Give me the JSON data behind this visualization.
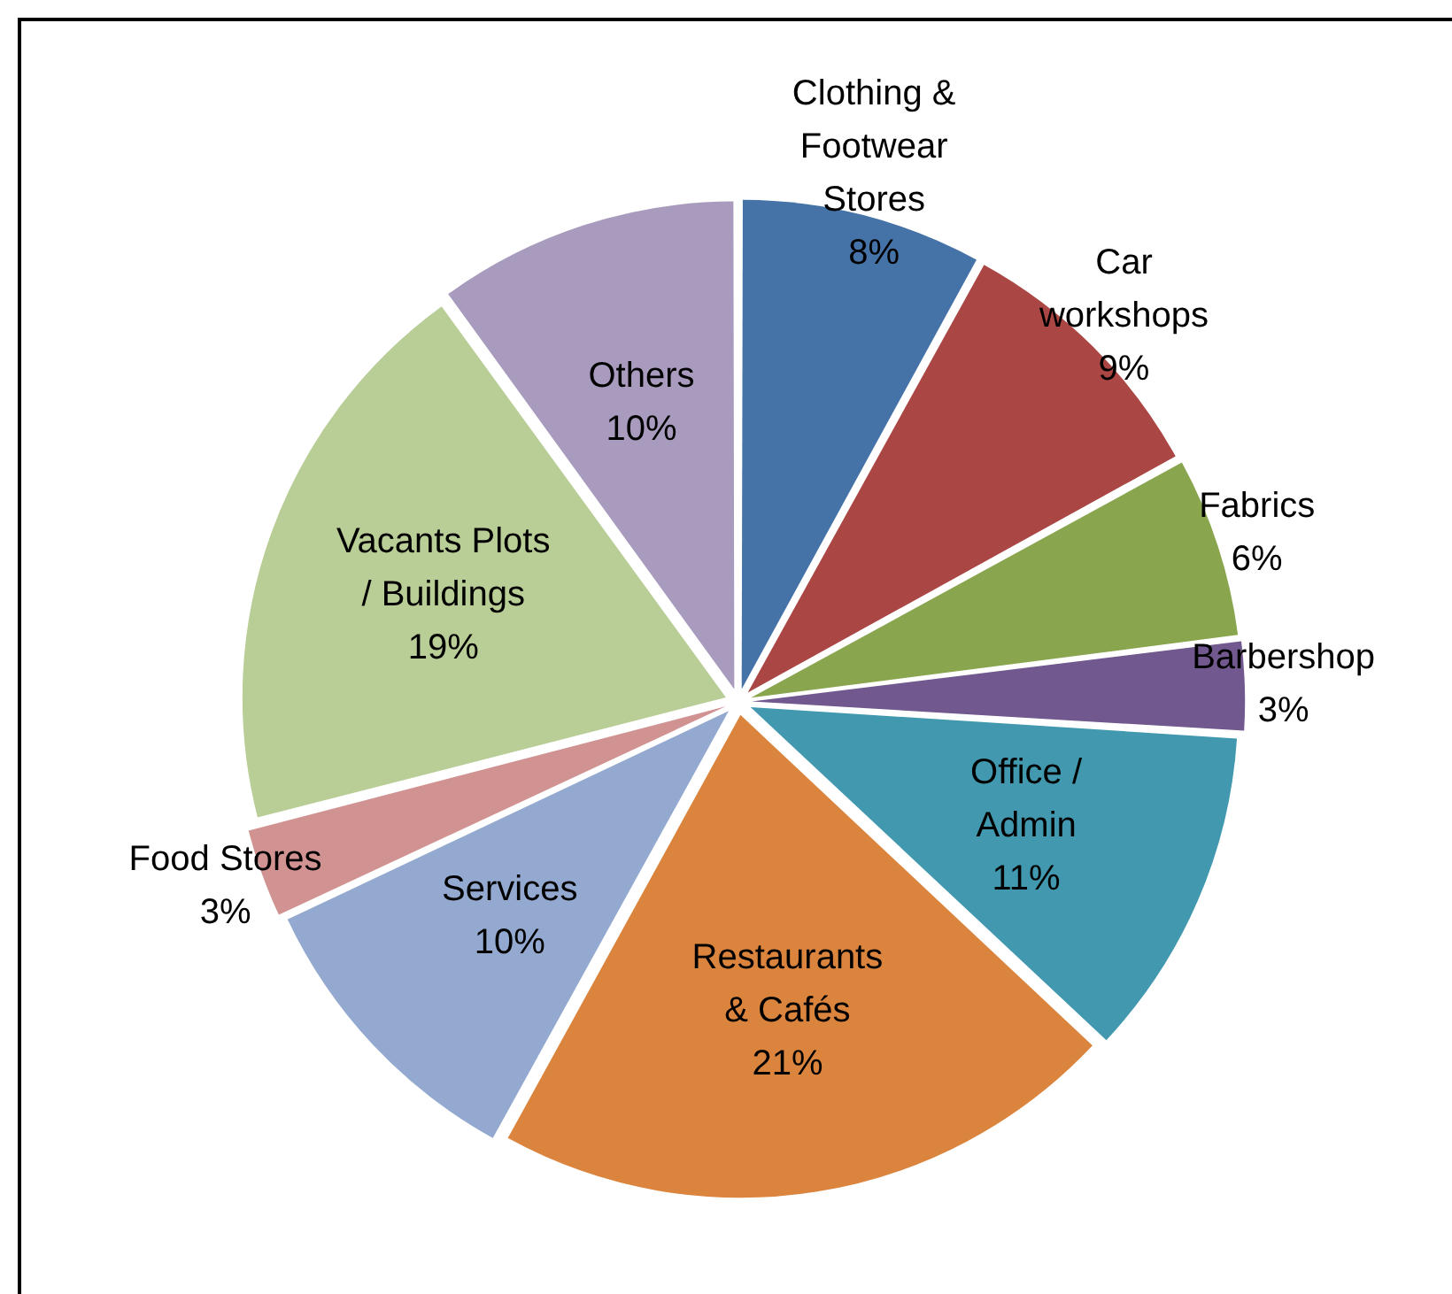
{
  "chart_data": {
    "type": "pie",
    "categories": [
      "Clothing & Footwear Stores",
      "Car workshops",
      "Fabrics",
      "Barbershop",
      "Office / Admin",
      "Restaurants & Cafés",
      "Services",
      "Food Stores",
      "Vacants Plots / Buildings",
      "Others"
    ],
    "values": [
      8,
      9,
      6,
      3,
      11,
      21,
      10,
      3,
      19,
      10
    ],
    "colors": [
      "#4572a7",
      "#aa4643",
      "#89a54e",
      "#71588f",
      "#4198af",
      "#db843d",
      "#93a9cf",
      "#d19392",
      "#b9cd96",
      "#a99bbd"
    ],
    "value_labels": [
      "8%",
      "9%",
      "6%",
      "3%",
      "11%",
      "21%",
      "10%",
      "3%",
      "19%",
      "10%"
    ],
    "legend": false
  }
}
